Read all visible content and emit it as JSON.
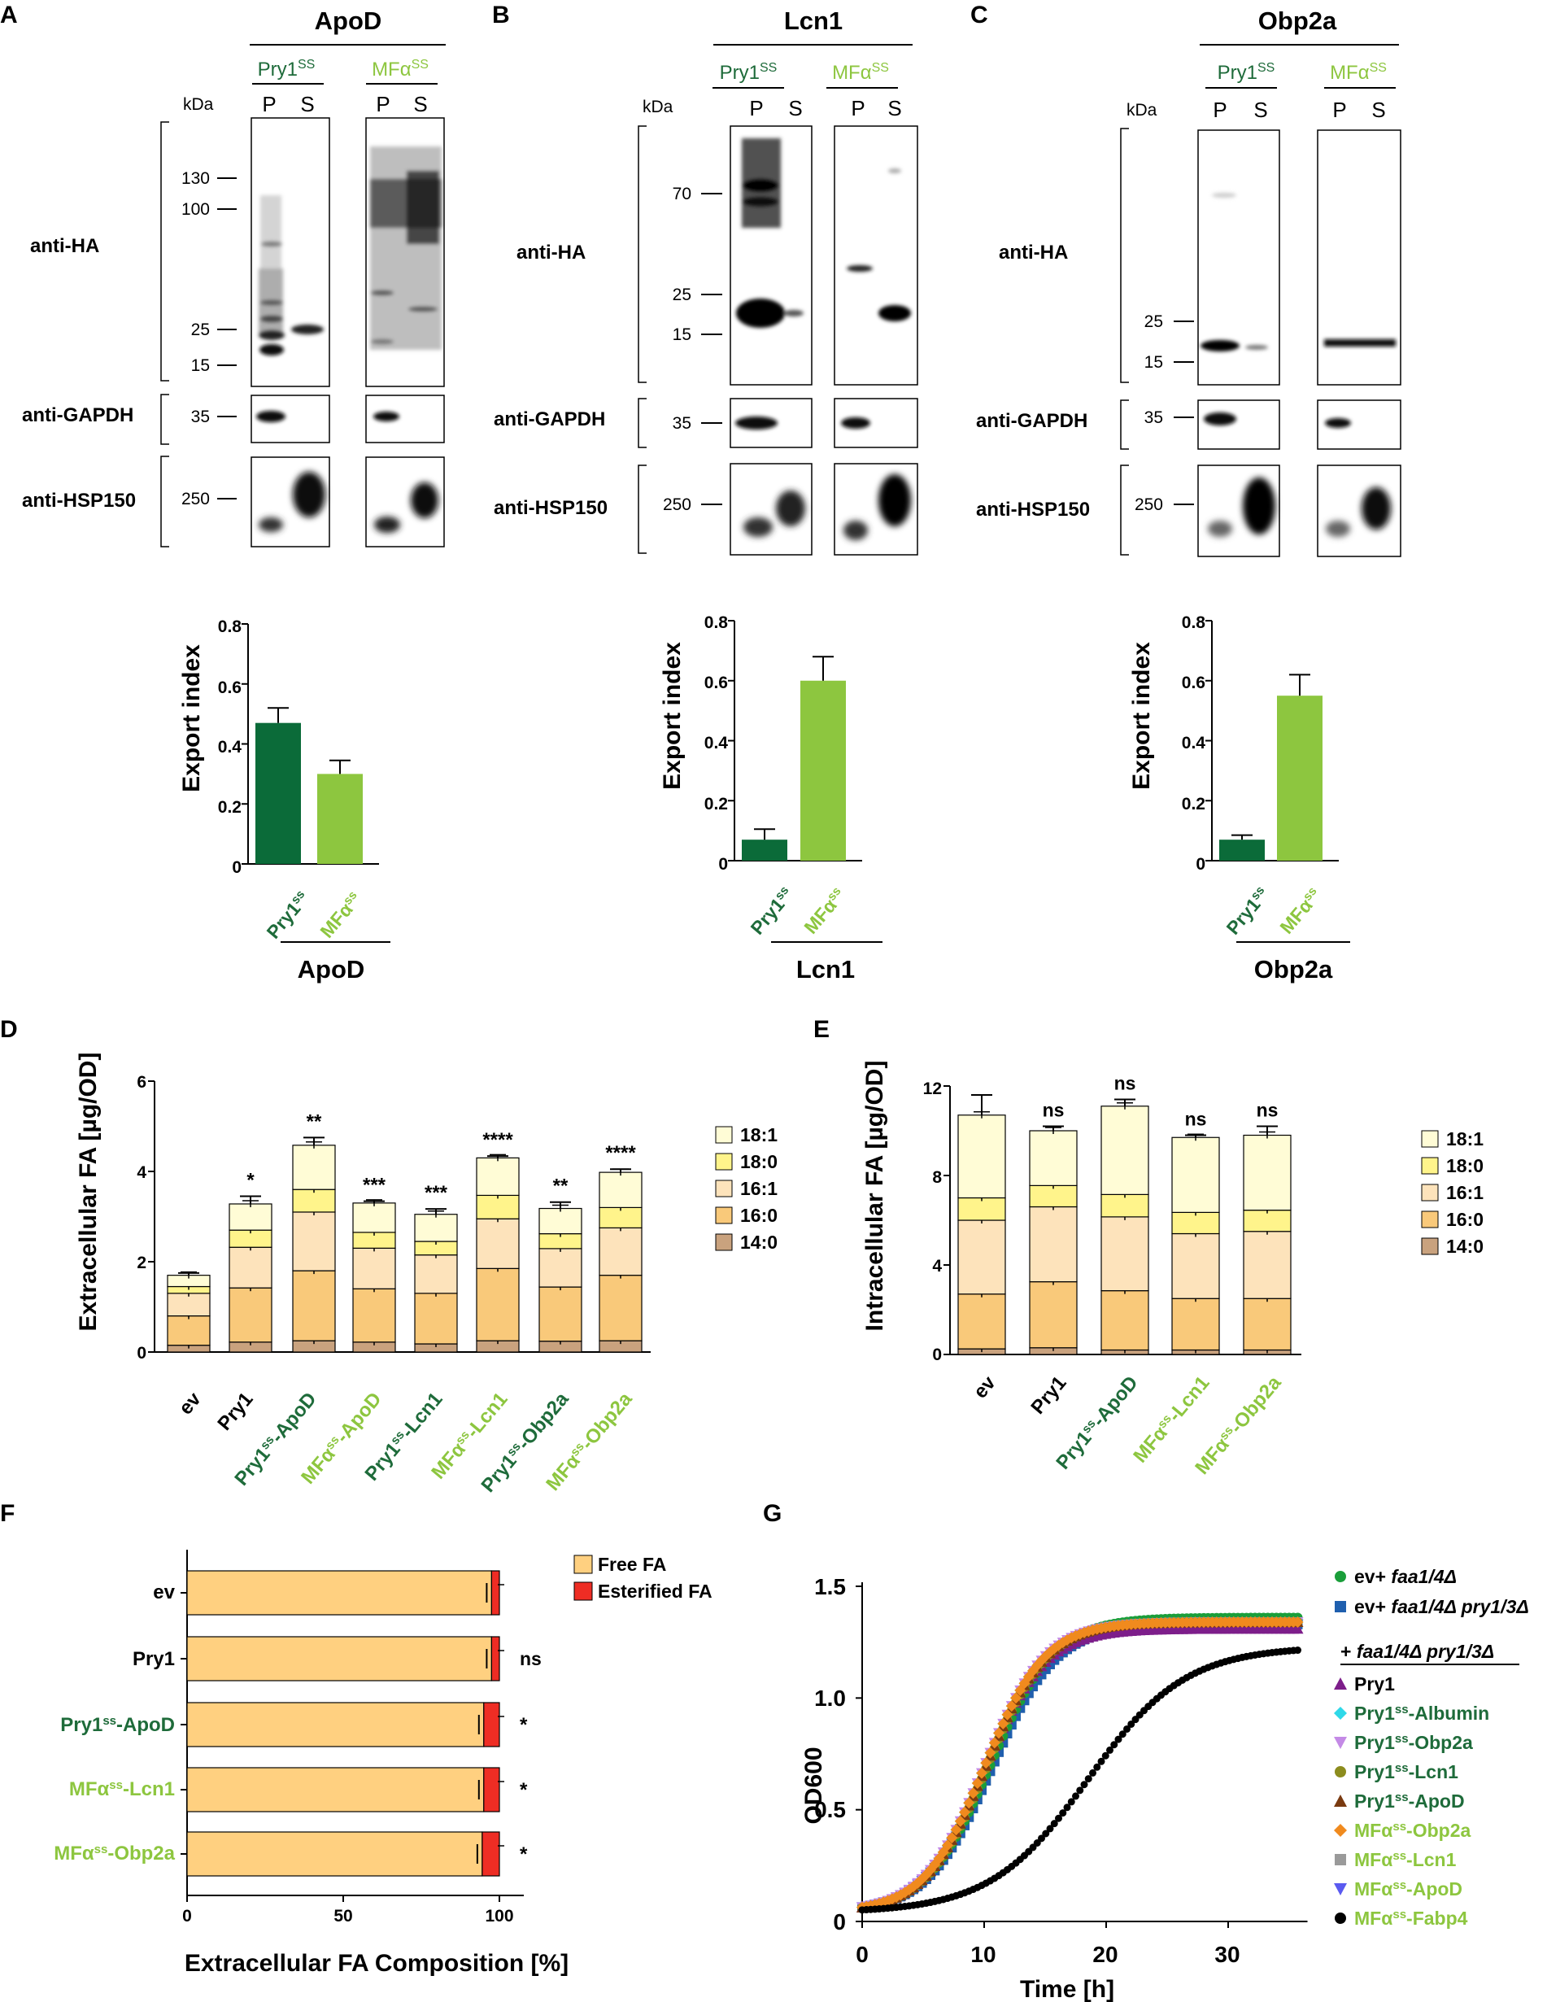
{
  "colors": {
    "pry1ss": "#0b6b39",
    "mfass": "#8dc63f",
    "fa_14_0": "#c9a27e",
    "fa_16_0": "#f9c97a",
    "fa_16_1": "#fde3bb",
    "fa_18_0": "#fff48b",
    "fa_18_1": "#fffcd6",
    "free_fa": "#ffd080",
    "esterified_fa": "#ee2d24",
    "growth": [
      "#1a9e3a",
      "#1f5fae",
      "#7d1e8a",
      "#2fd8e8",
      "#c48ae6",
      "#8c8c1e",
      "#7a3a10",
      "#f08a1e",
      "#9a9a9a",
      "#5a5af0",
      "#000000"
    ]
  },
  "blots": [
    {
      "panel": "A",
      "protein": "ApoD",
      "groups": [
        "Pry1ss",
        "MFαss"
      ],
      "lanes": [
        "P",
        "S"
      ],
      "kda_label": "kDa",
      "ha_markers": [
        "130",
        "100",
        "25",
        "15"
      ],
      "gapdh_marker": "35",
      "hsp_marker": "250",
      "antibodies": [
        "anti-HA",
        "anti-GAPDH",
        "anti-HSP150"
      ]
    },
    {
      "panel": "B",
      "protein": "Lcn1",
      "groups": [
        "Pry1ss",
        "MFαss"
      ],
      "lanes": [
        "P",
        "S"
      ],
      "kda_label": "kDa",
      "ha_markers": [
        "70",
        "25",
        "15"
      ],
      "gapdh_marker": "35",
      "hsp_marker": "250",
      "antibodies": [
        "anti-HA",
        "anti-GAPDH",
        "anti-HSP150"
      ]
    },
    {
      "panel": "C",
      "protein": "Obp2a",
      "groups": [
        "Pry1ss",
        "MFαss"
      ],
      "lanes": [
        "P",
        "S"
      ],
      "kda_label": "kDa",
      "ha_markers": [
        "25",
        "15"
      ],
      "gapdh_marker": "35",
      "hsp_marker": "250",
      "antibodies": [
        "anti-HA",
        "anti-GAPDH",
        "anti-HSP150"
      ]
    }
  ],
  "chart_data": [
    {
      "panel": "A",
      "type": "bar",
      "title": "ApoD",
      "ylabel": "Export index",
      "ylim": [
        0,
        0.8
      ],
      "yticks": [
        "0",
        "0.2",
        "0.4",
        "0.6",
        "0.8"
      ],
      "categories": [
        "Pry1ss",
        "MFαss"
      ],
      "values": [
        0.47,
        0.3
      ],
      "errors": [
        0.05,
        0.045
      ]
    },
    {
      "panel": "B",
      "type": "bar",
      "title": "Lcn1",
      "ylabel": "Export index",
      "ylim": [
        0,
        0.8
      ],
      "yticks": [
        "0",
        "0.2",
        "0.4",
        "0.6",
        "0.8"
      ],
      "categories": [
        "Pry1ss",
        "MFαss"
      ],
      "values": [
        0.07,
        0.6
      ],
      "errors": [
        0.035,
        0.08
      ]
    },
    {
      "panel": "C",
      "type": "bar",
      "title": "Obp2a",
      "ylabel": "Export index",
      "ylim": [
        0,
        0.8
      ],
      "yticks": [
        "0",
        "0.2",
        "0.4",
        "0.6",
        "0.8"
      ],
      "categories": [
        "Pry1ss",
        "MFαss"
      ],
      "values": [
        0.07,
        0.55
      ],
      "errors": [
        0.015,
        0.07
      ]
    },
    {
      "panel": "D",
      "type": "bar",
      "stacked": true,
      "ylabel": "Extracellular FA [µg/OD]",
      "ylim": [
        0,
        6
      ],
      "yticks": [
        "0",
        "2",
        "4",
        "6"
      ],
      "categories": [
        "ev",
        "Pry1",
        "Pry1ss-ApoD",
        "MFαss-ApoD",
        "Pry1ss-Lcn1",
        "MFαss-Lcn1",
        "Pry1ss-Obp2a",
        "MFαss-Obp2a"
      ],
      "significance": [
        "",
        "*",
        "**",
        "***",
        "***",
        "****",
        "**",
        "****"
      ],
      "series": [
        {
          "name": "14:0",
          "values": [
            0.15,
            0.22,
            0.25,
            0.22,
            0.18,
            0.25,
            0.24,
            0.25
          ]
        },
        {
          "name": "16:0",
          "values": [
            0.65,
            1.2,
            1.55,
            1.18,
            1.12,
            1.6,
            1.2,
            1.45
          ]
        },
        {
          "name": "16:1",
          "values": [
            0.5,
            0.9,
            1.3,
            0.9,
            0.85,
            1.1,
            0.85,
            1.05
          ]
        },
        {
          "name": "18:0",
          "values": [
            0.15,
            0.38,
            0.5,
            0.35,
            0.3,
            0.52,
            0.33,
            0.45
          ]
        },
        {
          "name": "18:1",
          "values": [
            0.25,
            0.58,
            0.98,
            0.65,
            0.6,
            0.83,
            0.56,
            0.78
          ]
        }
      ],
      "totals_err": [
        0.05,
        0.17,
        0.17,
        0.04,
        0.12,
        0.04,
        0.14,
        0.07
      ]
    },
    {
      "panel": "E",
      "type": "bar",
      "stacked": true,
      "ylabel": "Intracellular FA [µg/OD]",
      "ylim": [
        0,
        12
      ],
      "yticks": [
        "0",
        "4",
        "8",
        "12"
      ],
      "categories": [
        "ev",
        "Pry1",
        "Pry1ss-ApoD",
        "MFαss-Lcn1",
        "MFαss-Obp2a"
      ],
      "significance": [
        "",
        "ns",
        "ns",
        "ns",
        "ns"
      ],
      "series": [
        {
          "name": "14:0",
          "values": [
            0.25,
            0.3,
            0.2,
            0.2,
            0.2
          ]
        },
        {
          "name": "16:0",
          "values": [
            2.45,
            2.95,
            2.65,
            2.3,
            2.3
          ]
        },
        {
          "name": "16:1",
          "values": [
            3.3,
            3.35,
            3.3,
            2.9,
            3.0
          ]
        },
        {
          "name": "18:0",
          "values": [
            1.0,
            0.95,
            1.0,
            0.95,
            0.95
          ]
        },
        {
          "name": "18:1",
          "values": [
            3.7,
            2.45,
            3.95,
            3.35,
            3.35
          ]
        }
      ],
      "totals_err": [
        0.9,
        0.2,
        0.3,
        0.1,
        0.4
      ]
    },
    {
      "panel": "F",
      "type": "bar",
      "orientation": "horizontal",
      "stacked": true,
      "xlabel": "Extracellular FA Composition [%]",
      "xlim": [
        0,
        100
      ],
      "xticks": [
        "0",
        "50",
        "100"
      ],
      "categories": [
        "ev",
        "Pry1",
        "Pry1ss-ApoD",
        "MFαss-Lcn1",
        "MFαss-Obp2a"
      ],
      "significance": [
        "",
        "ns",
        "*",
        "*",
        "*"
      ],
      "series": [
        {
          "name": "Free FA",
          "values": [
            97.5,
            97.5,
            95,
            95,
            94.5
          ]
        },
        {
          "name": "Esterified FA",
          "values": [
            2.5,
            2.5,
            5,
            5,
            5.5
          ]
        }
      ]
    },
    {
      "panel": "G",
      "type": "scatter",
      "xlabel": "Time [h]",
      "ylabel": "OD600",
      "xlim": [
        0,
        36
      ],
      "ylim": [
        0,
        1.5
      ],
      "xticks": [
        "0",
        "10",
        "20",
        "30"
      ],
      "yticks": [
        "0",
        "0.5",
        "1.0",
        "1.5"
      ],
      "legend_subheader": "+ faa1/4Δ pry1/3Δ",
      "series": [
        {
          "name": "ev+ faa1/4Δ",
          "marker": "circle",
          "t_half": 10.5,
          "max": 1.36,
          "rate": 0.38
        },
        {
          "name": "ev+ faa1/4Δ pry1/3Δ",
          "marker": "square",
          "t_half": 10.6,
          "max": 1.33,
          "rate": 0.38
        },
        {
          "name": "Pry1",
          "marker": "triangle-up",
          "t_half": 10.0,
          "max": 1.31,
          "rate": 0.4
        },
        {
          "name": "Pry1ss-Albumin",
          "marker": "diamond",
          "t_half": 10.0,
          "max": 1.34,
          "rate": 0.4
        },
        {
          "name": "Pry1ss-Obp2a",
          "marker": "triangle-down",
          "t_half": 10.0,
          "max": 1.34,
          "rate": 0.4
        },
        {
          "name": "Pry1ss-Lcn1",
          "marker": "circle",
          "t_half": 10.2,
          "max": 1.34,
          "rate": 0.4
        },
        {
          "name": "Pry1ss-ApoD",
          "marker": "triangle-up",
          "t_half": 10.1,
          "max": 1.34,
          "rate": 0.4
        },
        {
          "name": "MFαss-Obp2a",
          "marker": "diamond",
          "t_half": 10.0,
          "max": 1.34,
          "rate": 0.4
        },
        {
          "name": "MFαss-Lcn1",
          "marker": "square",
          "t_half": 10.6,
          "max": 1.33,
          "rate": 0.38
        },
        {
          "name": "MFαss-ApoD",
          "marker": "triangle-down",
          "t_half": 10.4,
          "max": 1.33,
          "rate": 0.38
        },
        {
          "name": "MFαss-Fabp4",
          "marker": "circle",
          "t_half": 18.5,
          "max": 1.23,
          "rate": 0.25
        }
      ]
    }
  ],
  "text": {
    "A": "A",
    "B": "B",
    "C": "C",
    "D": "D",
    "E": "E",
    "F": "F",
    "G": "G",
    "apod": "ApoD",
    "lcn1": "Lcn1",
    "obp2a": "Obp2a",
    "kda": "kDa",
    "P": "P",
    "S": "S",
    "pry1": "Pry1",
    "ss": "ss",
    "mfa": "MFα",
    "SS": "SS",
    "antiHA": "anti-HA",
    "antiGAPDH": "anti-GAPDH",
    "antiHSP150": "anti-HSP150",
    "m130": "130",
    "m100": "100",
    "m70": "70",
    "m35": "35",
    "m25": "25",
    "m15": "15",
    "m250": "250",
    "exportIndex": "Export index",
    "y0": "0",
    "y02": "0.2",
    "y04": "0.4",
    "y06": "0.6",
    "y08": "0.8",
    "extraFA": "Extracellular FA [µg/OD]",
    "intraFA": "Intracellular FA [µg/OD]",
    "d0": "0",
    "d2": "2",
    "d4": "4",
    "d6": "6",
    "e0": "0",
    "e4": "4",
    "e8": "8",
    "e12": "12",
    "f181": "18:1",
    "f180": "18:0",
    "f161": "16:1",
    "f160": "16:0",
    "f140": "14:0",
    "ev": "ev",
    "dash": "-",
    "apoD": "ApoD",
    "lcn1b": "Lcn1",
    "obp2ab": "Obp2a",
    "s1": "*",
    "s2": "**",
    "s3": "***",
    "s4": "****",
    "ns": "ns",
    "freeFA": "Free FA",
    "estFA": "Esterified FA",
    "fx0": "0",
    "fx50": "50",
    "fx100": "100",
    "faComp": "Extracellular FA Composition [%]",
    "od600": "OD600",
    "timeh": "Time [h]",
    "g0": "0",
    "g05": "0.5",
    "g10": "1.0",
    "g15": "1.5",
    "gx0": "0",
    "gx10": "10",
    "gx20": "20",
    "gx30": "30",
    "evPlus": "ev+ ",
    "faa14": "faa1/4Δ",
    "faa14pry": "faa1/4Δ pry1/3Δ",
    "plus": "+ ",
    "albumin": "-Albumin",
    "fabp4": "-Fabp4"
  }
}
